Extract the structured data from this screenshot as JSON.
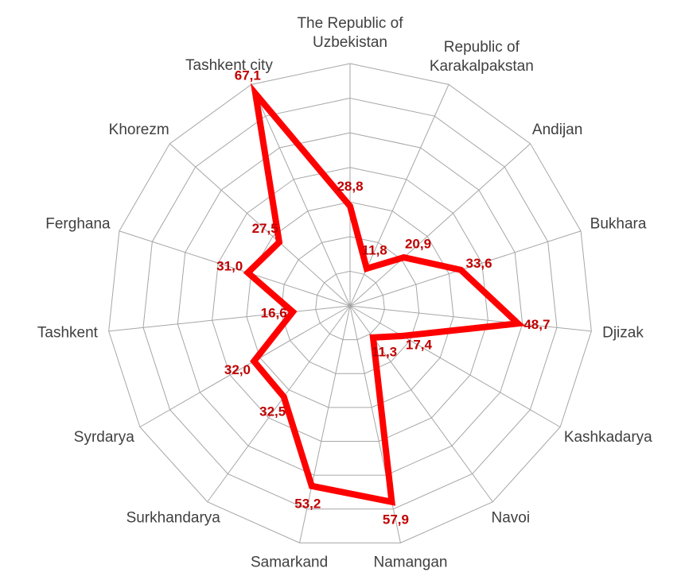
{
  "chart_data": {
    "type": "radar",
    "categories": [
      "The Republic of Uzbekistan",
      "Republic of Karakalpakstan",
      "Andijan",
      "Bukhara",
      "Djizak",
      "Kashkadarya",
      "Navoi",
      "Namangan",
      "Samarkand",
      "Surkhandarya",
      "Syrdarya",
      "Tashkent",
      "Ferghana",
      "Khorezm",
      "Tashkent city"
    ],
    "values": [
      28.8,
      11.8,
      20.9,
      33.6,
      48.7,
      17.4,
      11.3,
      57.9,
      53.2,
      32.5,
      32.0,
      16.6,
      31.0,
      27.5,
      67.1
    ],
    "value_labels": [
      "28,8",
      "11,8",
      "20,9",
      "33,6",
      "48,7",
      "17,4",
      "11,3",
      "57,9",
      "53,2",
      "32,5",
      "32,0",
      "16,6",
      "31,0",
      "27,5",
      "67,1"
    ],
    "color": "#ff0000",
    "ylim": [
      0,
      70
    ],
    "yticks": [
      10,
      20,
      30,
      40,
      50,
      60,
      70
    ],
    "grid": true
  }
}
